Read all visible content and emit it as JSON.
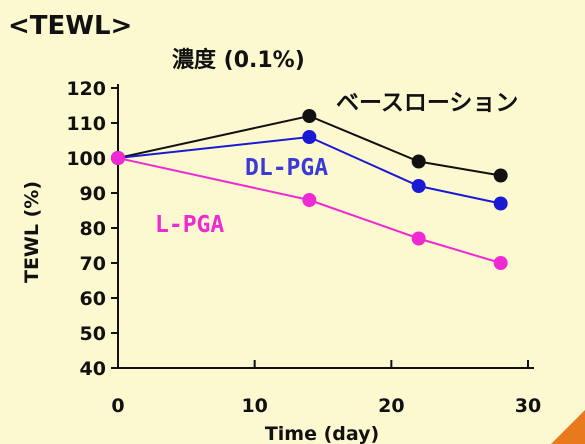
{
  "chart_data": {
    "type": "line",
    "heading": "<TEWL>",
    "title": "濃度 (0.1%)",
    "xlabel": "Time (day)",
    "ylabel": "TEWL (%)",
    "xlim": [
      0,
      30
    ],
    "ylim": [
      40,
      120
    ],
    "xticks": [
      0,
      10,
      20,
      30
    ],
    "yticks": [
      40,
      50,
      60,
      70,
      80,
      90,
      100,
      110,
      120
    ],
    "grid": false,
    "series": [
      {
        "name": "ベースローション",
        "color": "#111111",
        "x": [
          0,
          14,
          22,
          28
        ],
        "y": [
          100,
          112,
          99,
          95
        ]
      },
      {
        "name": "DL-PGA",
        "color": "#1a1ad4",
        "x": [
          0,
          14,
          22,
          28
        ],
        "y": [
          100,
          106,
          92,
          87
        ]
      },
      {
        "name": "L-PGA",
        "color": "#f02ad2",
        "x": [
          0,
          14,
          22,
          28
        ],
        "y": [
          100,
          88,
          77,
          70
        ]
      }
    ]
  }
}
